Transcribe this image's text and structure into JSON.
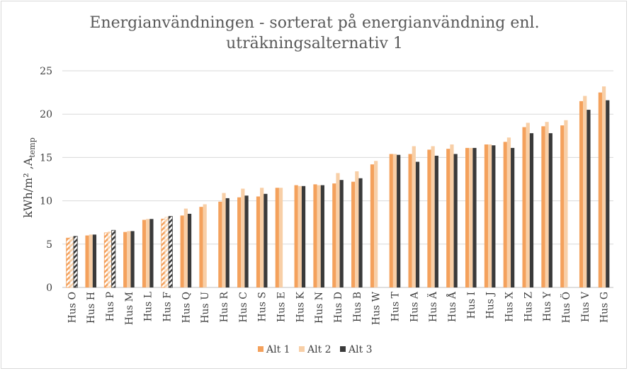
{
  "chart_data": {
    "type": "bar",
    "title": [
      "Energianvändningen - sorterat på energianvändning enl.",
      "uträkningsalternativ 1"
    ],
    "ylabel": "kWh/m² ,A",
    "ylabel_sub": "temp",
    "xlabel": "",
    "ylim": [
      0,
      25
    ],
    "yticks": [
      0,
      5,
      10,
      15,
      20,
      25
    ],
    "grid": true,
    "legend_position": "bottom",
    "categories": [
      "Hus O",
      "Hus H",
      "Hus P",
      "Hus M",
      "Hus L",
      "Hus F",
      "Hus Q",
      "Hus U",
      "Hus R",
      "Hus C",
      "Hus S",
      "Hus E",
      "Hus K",
      "Hus N",
      "Hus D",
      "Hus B",
      "Hus W",
      "Hus T",
      "Hus A",
      "Hus Ä",
      "Hus Å",
      "Hus I",
      "Hus J",
      "Hus X",
      "Hus Z",
      "Hus Y",
      "Hus Ö",
      "Hus V",
      "Hus G"
    ],
    "hatched_categories": [
      "Hus O",
      "Hus P",
      "Hus F"
    ],
    "series": [
      {
        "name": "Alt 1",
        "color": "#f4a15c",
        "values": [
          5.7,
          6.0,
          6.3,
          6.4,
          7.8,
          7.9,
          8.3,
          9.3,
          9.9,
          10.4,
          10.5,
          11.5,
          11.8,
          11.9,
          12.0,
          12.2,
          14.2,
          15.4,
          15.4,
          15.9,
          16.0,
          16.1,
          16.5,
          16.8,
          18.5,
          18.6,
          18.7,
          21.5,
          22.5
        ]
      },
      {
        "name": "Alt 2",
        "color": "#f8cfa7",
        "values": [
          5.8,
          6.1,
          6.4,
          6.5,
          7.9,
          8.1,
          9.1,
          9.6,
          10.9,
          11.4,
          11.5,
          11.5,
          11.7,
          11.8,
          13.2,
          13.4,
          14.6,
          15.4,
          16.3,
          16.3,
          16.5,
          16.1,
          16.5,
          17.3,
          19.0,
          19.1,
          19.3,
          22.1,
          23.2
        ]
      },
      {
        "name": "Alt 3",
        "color": "#3a3a3a",
        "values": [
          5.9,
          6.1,
          6.6,
          6.5,
          7.9,
          8.2,
          8.5,
          null,
          10.3,
          10.6,
          10.8,
          null,
          11.7,
          11.8,
          12.4,
          12.6,
          null,
          15.3,
          14.5,
          15.2,
          15.4,
          16.1,
          16.4,
          16.1,
          17.8,
          17.8,
          null,
          20.5,
          21.6
        ]
      }
    ]
  }
}
